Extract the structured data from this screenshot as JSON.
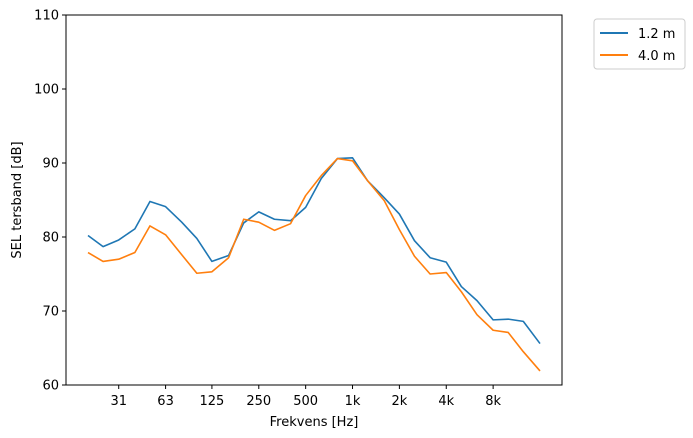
{
  "chart_data": {
    "type": "line",
    "xlabel": "Frekvens [Hz]",
    "ylabel": "SEL tersband [dB]",
    "ylim": [
      60,
      110
    ],
    "yticks": [
      60,
      70,
      80,
      90,
      100,
      110
    ],
    "x_scale": "log",
    "xticks": [
      {
        "value": 31.5,
        "label": "31"
      },
      {
        "value": 63,
        "label": "63"
      },
      {
        "value": 125,
        "label": "125"
      },
      {
        "value": 250,
        "label": "250"
      },
      {
        "value": 500,
        "label": "500"
      },
      {
        "value": 1000,
        "label": "1k"
      },
      {
        "value": 2000,
        "label": "2k"
      },
      {
        "value": 4000,
        "label": "4k"
      },
      {
        "value": 8000,
        "label": "8k"
      }
    ],
    "x": [
      20,
      25,
      31.5,
      40,
      50,
      63,
      80,
      100,
      125,
      160,
      200,
      250,
      315,
      400,
      500,
      630,
      800,
      1000,
      1250,
      1600,
      2000,
      2500,
      3150,
      4000,
      5000,
      6300,
      8000,
      10000,
      12500,
      16000
    ],
    "series": [
      {
        "name": "1.2 m",
        "color": "#1f77b4",
        "values": [
          80.2,
          78.7,
          79.6,
          81.1,
          84.8,
          84.1,
          82.0,
          79.8,
          76.7,
          77.5,
          81.9,
          83.4,
          82.4,
          82.2,
          84.0,
          87.9,
          90.6,
          90.7,
          87.6,
          85.3,
          83.1,
          79.5,
          77.2,
          76.6,
          73.3,
          71.4,
          68.8,
          68.9,
          68.6,
          65.6
        ]
      },
      {
        "name": "4.0 m",
        "color": "#ff7f0e",
        "values": [
          77.9,
          76.7,
          77.0,
          77.9,
          81.5,
          80.3,
          77.6,
          75.1,
          75.3,
          77.2,
          82.4,
          82.0,
          80.9,
          81.8,
          85.6,
          88.3,
          90.6,
          90.3,
          87.6,
          84.9,
          81.0,
          77.4,
          75.0,
          75.2,
          72.6,
          69.5,
          67.4,
          67.1,
          64.5,
          61.9
        ]
      }
    ],
    "legend_position": "outside-top-right",
    "grid": false
  }
}
